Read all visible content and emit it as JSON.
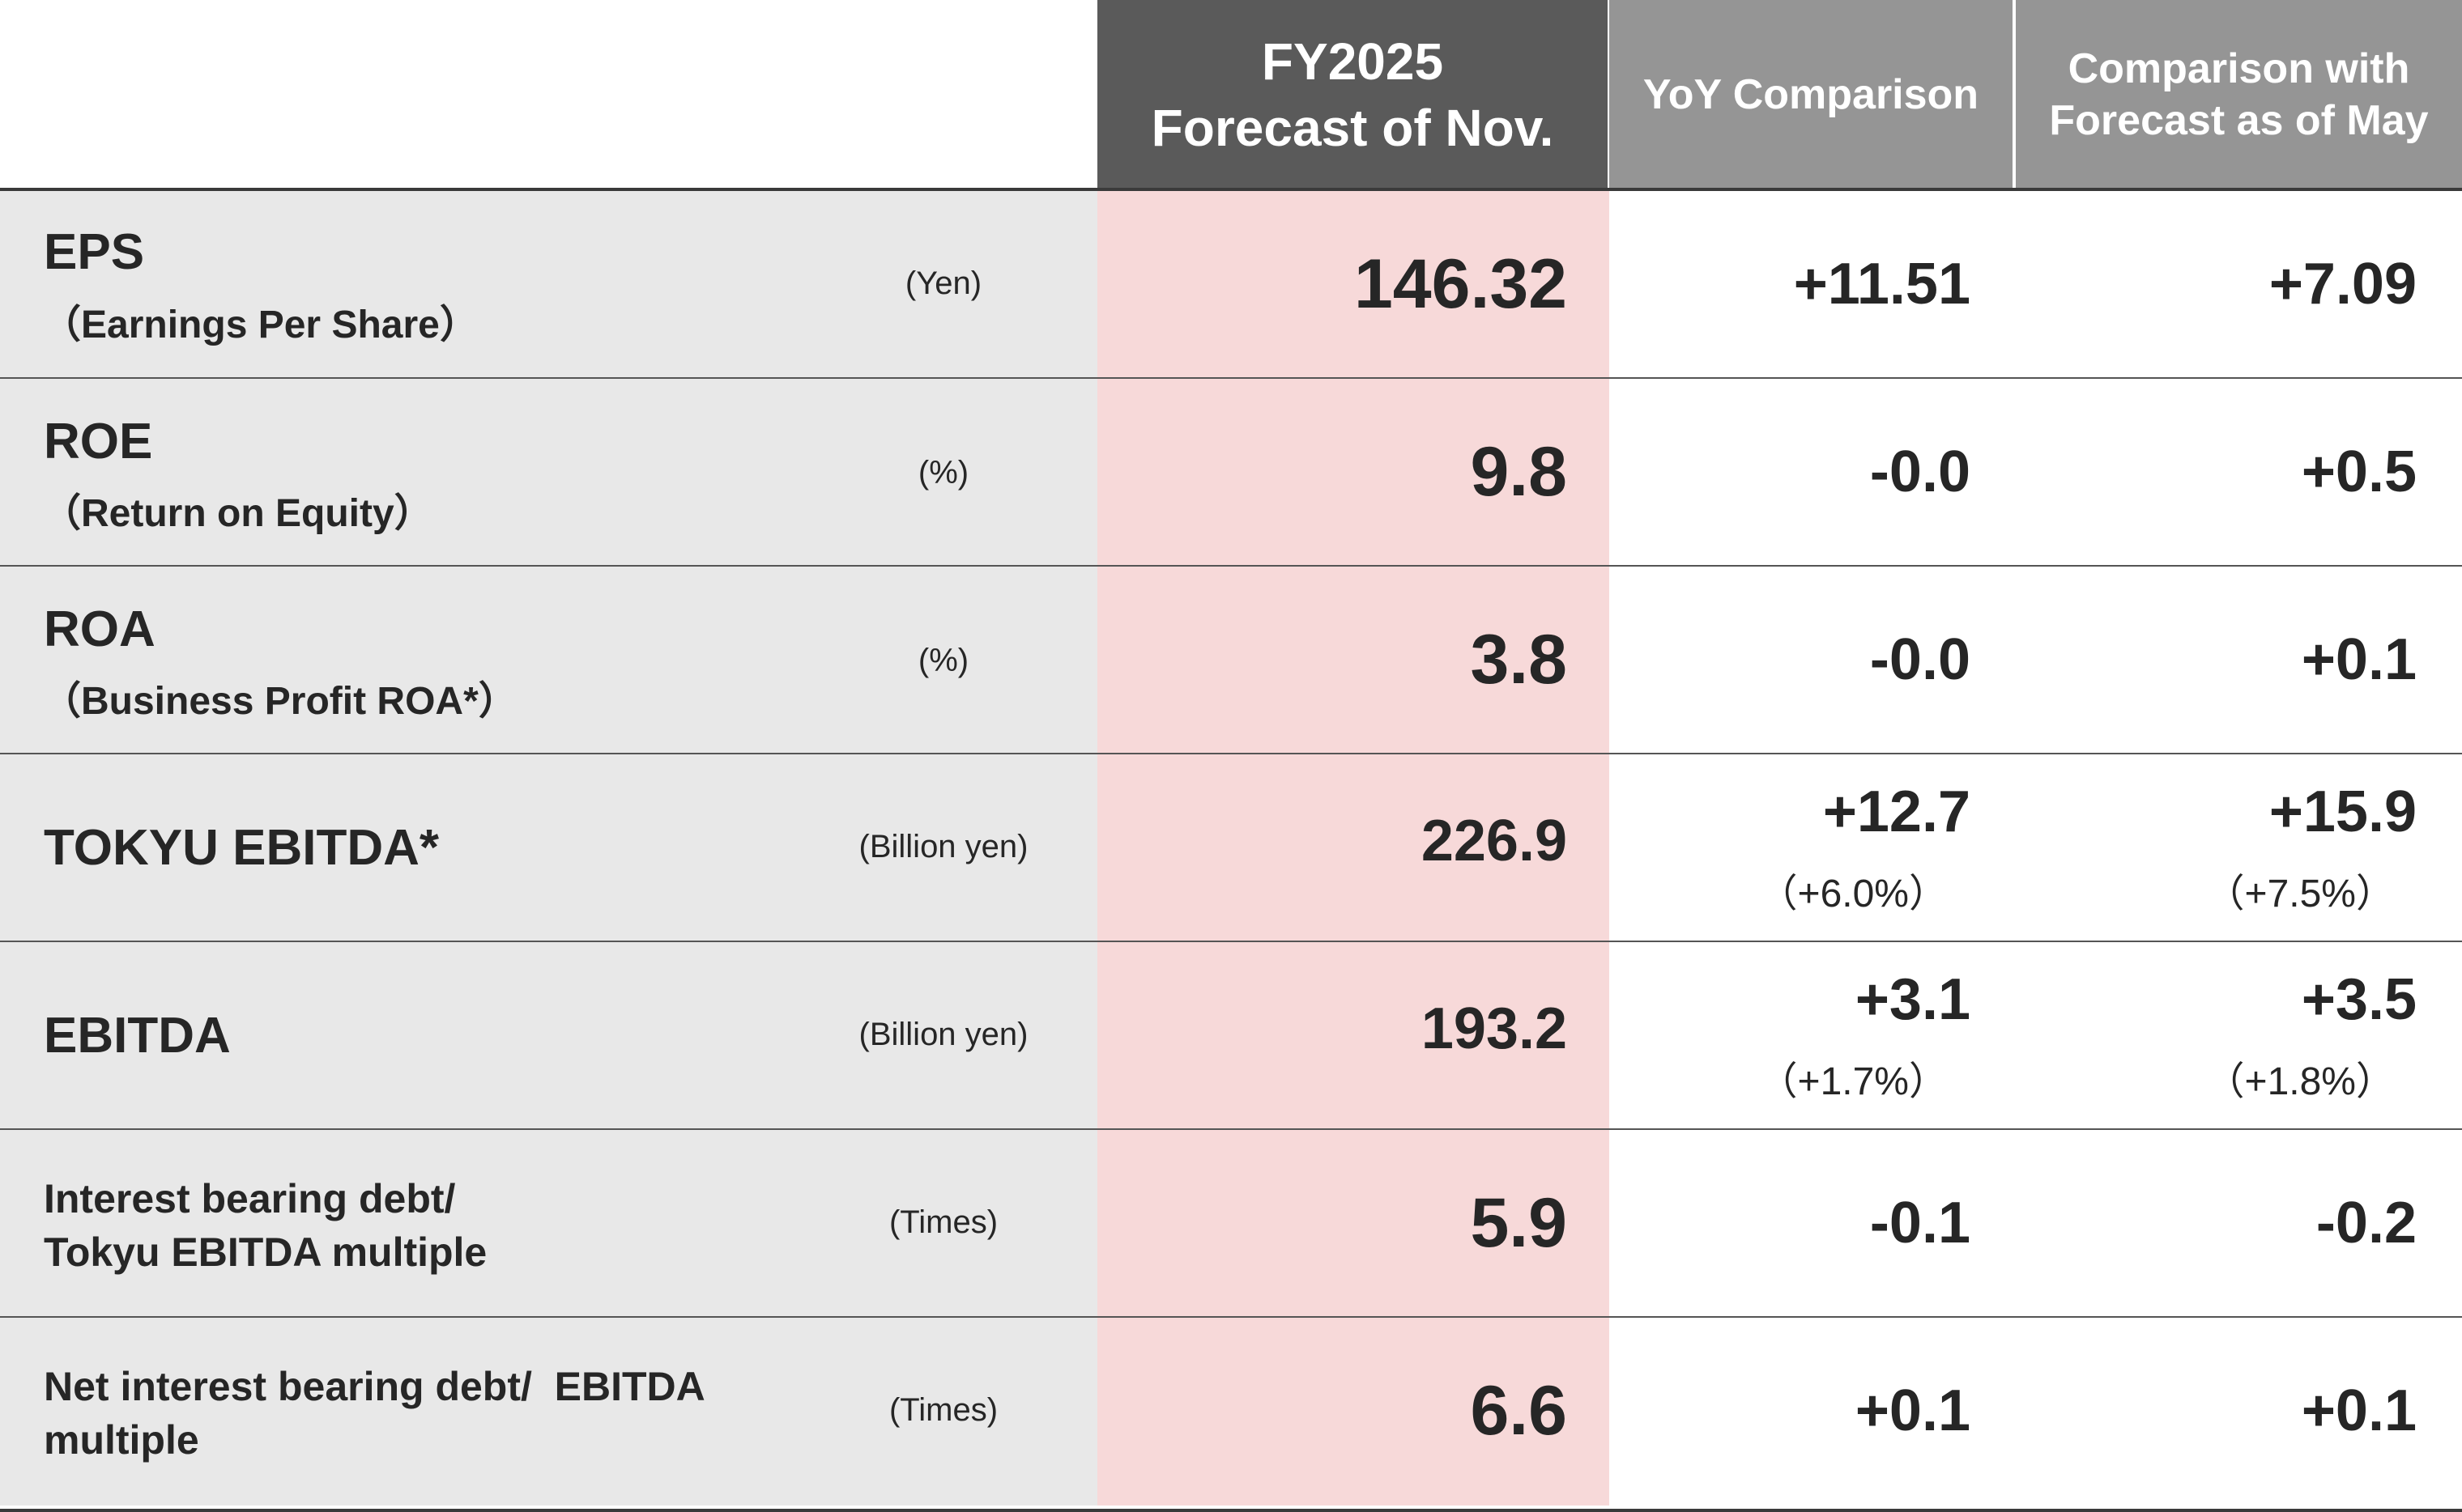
{
  "header": {
    "fy_line1": "FY2025",
    "fy_line2": "Forecast of Nov.",
    "yoy": "YoY Comparison",
    "may_line1": "Comparison with",
    "may_line2": "Forecast as of May"
  },
  "rows": [
    {
      "label": "EPS",
      "sublabel": "（Earnings Per Share）",
      "unit": "(Yen)",
      "forecast": "146.32",
      "yoy": "+11.51",
      "yoy_pct": "",
      "vs_may": "+7.09",
      "vs_may_pct": ""
    },
    {
      "label": "ROE",
      "sublabel": "（Return on Equity）",
      "unit": "(%)",
      "forecast": "9.8",
      "yoy": "-0.0",
      "yoy_pct": "",
      "vs_may": "+0.5",
      "vs_may_pct": ""
    },
    {
      "label": "ROA",
      "sublabel": "（Business Profit ROA*）",
      "unit": "(%)",
      "forecast": "3.8",
      "yoy": "-0.0",
      "yoy_pct": "",
      "vs_may": "+0.1",
      "vs_may_pct": ""
    },
    {
      "label": "TOKYU EBITDA*",
      "sublabel": "",
      "unit": "(Billion yen)",
      "forecast": "226.9",
      "yoy": "+12.7",
      "yoy_pct": "（+6.0%）",
      "vs_may": "+15.9",
      "vs_may_pct": "（+7.5%）"
    },
    {
      "label": "EBITDA",
      "sublabel": "",
      "unit": "(Billion yen)",
      "forecast": "193.2",
      "yoy": "+3.1",
      "yoy_pct": "（+1.7%）",
      "vs_may": "+3.5",
      "vs_may_pct": "（+1.8%）"
    },
    {
      "label": "Interest bearing debt/",
      "sublabel": "Tokyu EBITDA multiple",
      "unit": "(Times)",
      "forecast": "5.9",
      "yoy": "-0.1",
      "yoy_pct": "",
      "vs_may": "-0.2",
      "vs_may_pct": ""
    },
    {
      "label": "Net interest bearing debt/  EBITDA",
      "sublabel": "multiple",
      "unit": "(Times)",
      "forecast": "6.6",
      "yoy": "+0.1",
      "yoy_pct": "",
      "vs_may": "+0.1",
      "vs_may_pct": ""
    }
  ]
}
